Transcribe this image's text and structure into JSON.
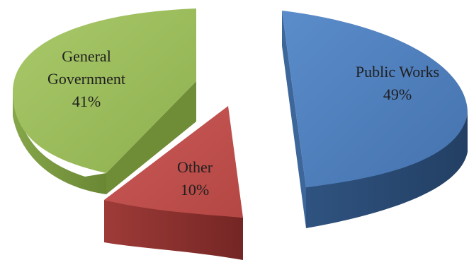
{
  "chart_data": {
    "type": "pie",
    "title": "",
    "exploded": true,
    "three_d": true,
    "slices": [
      {
        "name_lines": [
          "General",
          "Government"
        ],
        "value": 41,
        "pct_label": "41%",
        "color": "#9bbb59",
        "side_color": "#76923c"
      },
      {
        "name_lines": [
          "Other"
        ],
        "value": 10,
        "pct_label": "10%",
        "color": "#c0504d",
        "side_color": "#8c302d"
      },
      {
        "name_lines": [
          "Public Works"
        ],
        "value": 49,
        "pct_label": "49%",
        "color": "#4f81bd",
        "side_color": "#2c4d75"
      }
    ]
  }
}
